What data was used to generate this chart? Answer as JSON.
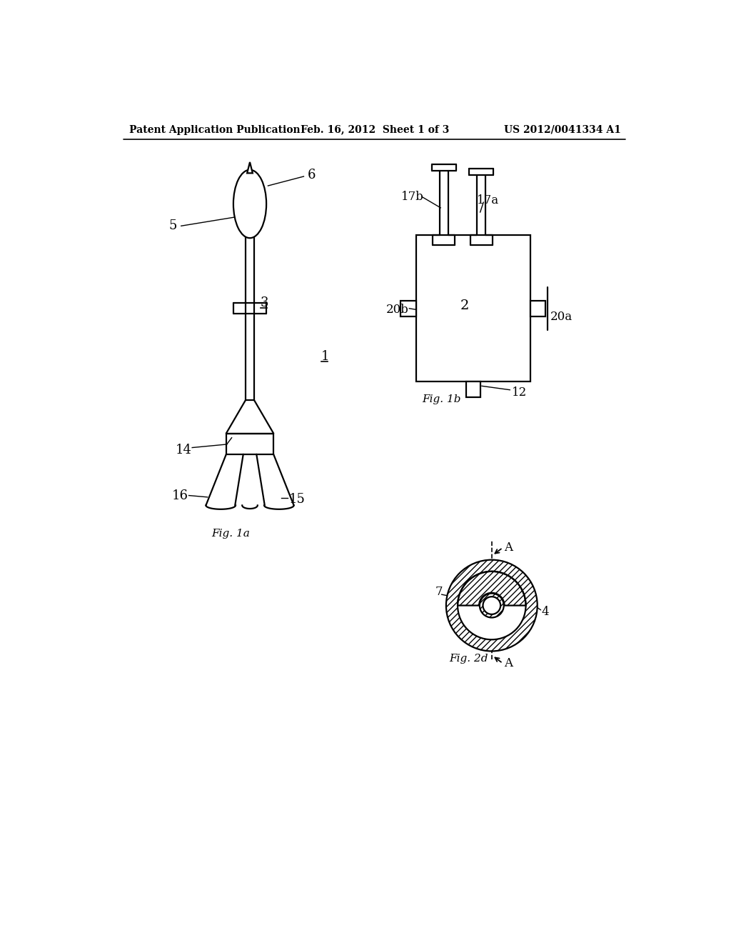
{
  "bg_color": "#ffffff",
  "line_color": "#000000",
  "header_left": "Patent Application Publication",
  "header_center": "Feb. 16, 2012  Sheet 1 of 3",
  "header_right": "US 2012/0041334 A1",
  "fig1a_label": "Fig. 1a",
  "fig1b_label": "Fig. 1b",
  "fig2d_label": "Fig. 2d",
  "label_1": "1",
  "label_2": "2",
  "label_3": "3",
  "label_4": "4",
  "label_5": "5",
  "label_6": "6",
  "label_7": "7",
  "label_12": "12",
  "label_14": "14",
  "label_15": "15",
  "label_16": "16",
  "label_17a": "17a",
  "label_17b": "17b",
  "label_20a": "20a",
  "label_20b": "20b",
  "label_A": "A"
}
